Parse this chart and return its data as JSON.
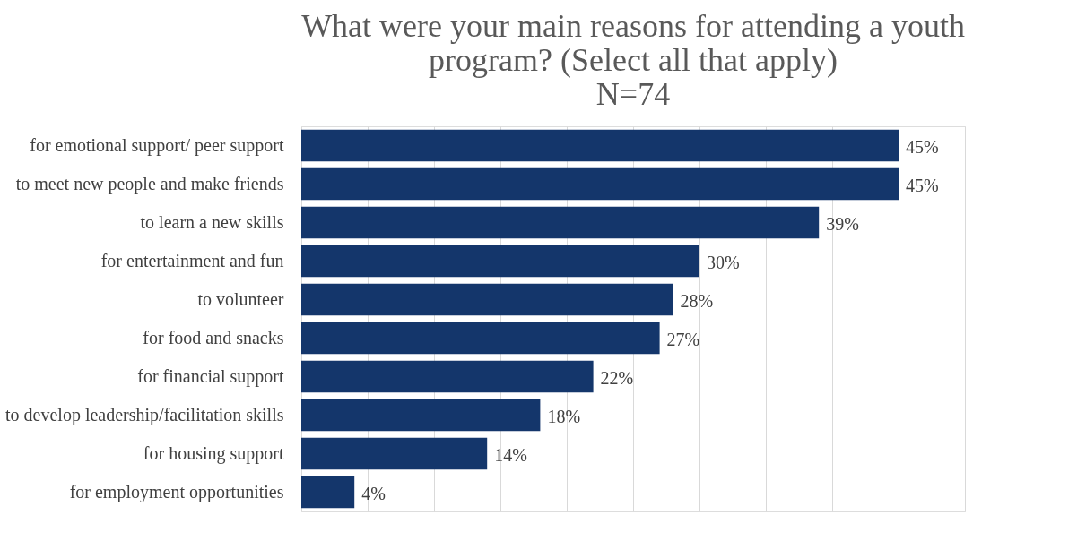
{
  "chart_data": {
    "type": "bar",
    "orientation": "horizontal",
    "title": "What were your main reasons for attending a youth\nprogram? (Select all that apply)\nN=74",
    "categories": [
      "for emotional support/ peer support",
      "to meet new people and make friends",
      "to learn a new skills",
      "for entertainment and fun",
      "to volunteer",
      "for food and snacks",
      "for financial support",
      "to develop leadership/facilitation skills",
      "for housing support",
      "for employment opportunities"
    ],
    "values": [
      45,
      45,
      39,
      30,
      28,
      27,
      22,
      18,
      14,
      4
    ],
    "value_labels": [
      "45%",
      "45%",
      "39%",
      "30%",
      "28%",
      "27%",
      "22%",
      "18%",
      "14%",
      "4%"
    ],
    "color": "#14366b",
    "xlim": [
      0,
      50
    ],
    "xticks": [
      {
        "value": 0,
        "label": null
      },
      {
        "value": 5,
        "label": null
      },
      {
        "value": 10,
        "label": null
      },
      {
        "value": 15,
        "label": null
      },
      {
        "value": 20,
        "label": null
      },
      {
        "value": 25,
        "label": null
      },
      {
        "value": 30,
        "label": null
      },
      {
        "value": 35,
        "label": null
      },
      {
        "value": 40,
        "label": null
      },
      {
        "value": 45,
        "label": null
      },
      {
        "value": 50,
        "label": null
      }
    ],
    "tick_labels": "y",
    "grid": "x"
  }
}
